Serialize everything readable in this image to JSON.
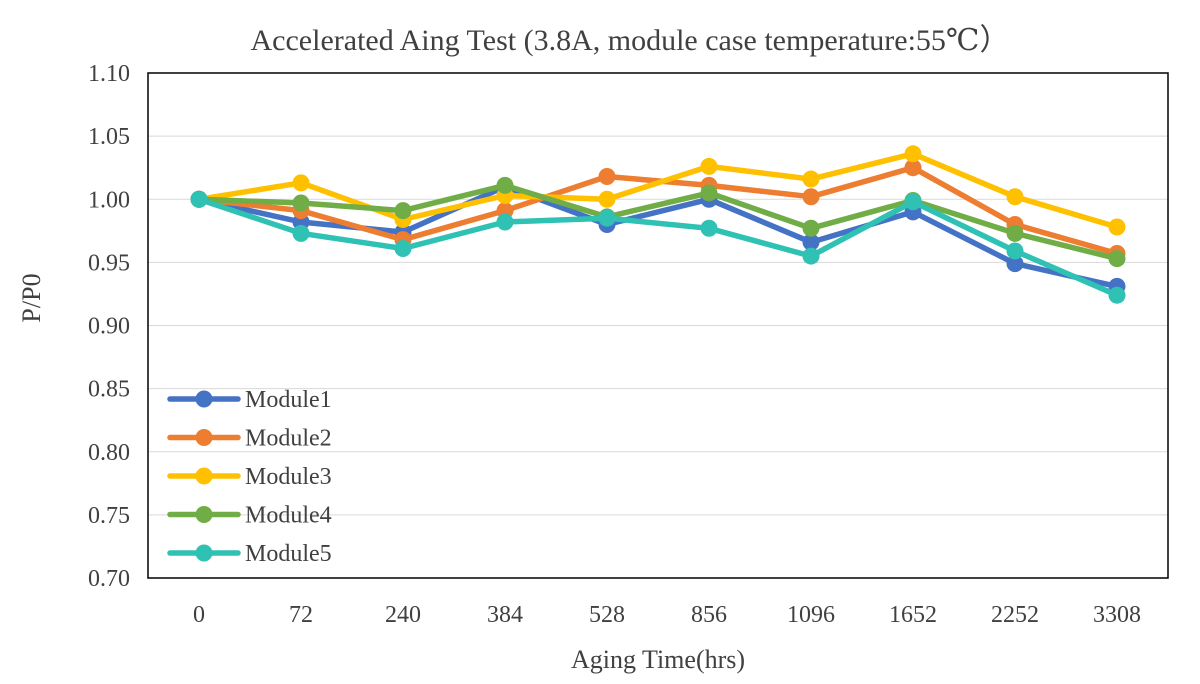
{
  "chart_data": {
    "type": "line",
    "title": "Accelerated Aing Test (3.8A, module case temperature:55℃）",
    "xlabel": "Aging Time(hrs)",
    "ylabel": "P/P0",
    "categories": [
      "0",
      "72",
      "240",
      "384",
      "528",
      "856",
      "1096",
      "1652",
      "2252",
      "3308"
    ],
    "ylim": [
      0.7,
      1.1
    ],
    "yticks": [
      "1.10",
      "1.05",
      "1.00",
      "0.95",
      "0.90",
      "0.85",
      "0.80",
      "0.75",
      "0.70"
    ],
    "grid": true,
    "legend_position": "bottom-left",
    "series": [
      {
        "name": "Module1",
        "color": "#4472C4",
        "values": [
          1.0,
          0.982,
          0.974,
          1.01,
          0.98,
          1.0,
          0.966,
          0.99,
          0.949,
          0.931
        ]
      },
      {
        "name": "Module2",
        "color": "#ED7D31",
        "values": [
          1.0,
          0.991,
          0.968,
          0.991,
          1.018,
          1.011,
          1.002,
          1.025,
          0.98,
          0.957
        ]
      },
      {
        "name": "Module3",
        "color": "#FFC000",
        "values": [
          1.0,
          1.013,
          0.984,
          1.003,
          1.0,
          1.026,
          1.016,
          1.036,
          1.002,
          0.978
        ]
      },
      {
        "name": "Module4",
        "color": "#70AD47",
        "values": [
          1.0,
          0.997,
          0.991,
          1.011,
          0.986,
          1.005,
          0.977,
          0.999,
          0.973,
          0.953
        ]
      },
      {
        "name": "Module5",
        "color": "#2EC1B4",
        "values": [
          1.0,
          0.973,
          0.961,
          0.982,
          0.985,
          0.977,
          0.955,
          0.998,
          0.959,
          0.924
        ]
      }
    ]
  }
}
